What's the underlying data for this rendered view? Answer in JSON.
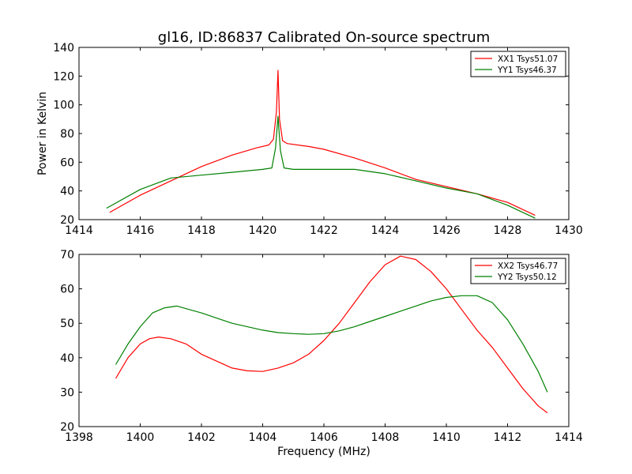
{
  "chart_data": [
    {
      "type": "line",
      "title": "gl16, ID:86837 Calibrated On-source spectrum",
      "xlabel": "",
      "ylabel": "Power in Kelvin",
      "xlim": [
        1414,
        1430
      ],
      "ylim": [
        20,
        140
      ],
      "xticks": [
        1414,
        1416,
        1418,
        1420,
        1422,
        1424,
        1426,
        1428,
        1430
      ],
      "yticks": [
        20,
        40,
        60,
        80,
        100,
        120,
        140
      ],
      "legend": "top-right",
      "grid": false,
      "series": [
        {
          "name": "XX1 Tsys51.07",
          "color": "#ff0000",
          "x": [
            1415.0,
            1416.0,
            1417.0,
            1418.0,
            1419.0,
            1419.8,
            1420.2,
            1420.35,
            1420.45,
            1420.5,
            1420.55,
            1420.65,
            1420.8,
            1421.5,
            1422.0,
            1423.0,
            1424.0,
            1425.0,
            1426.0,
            1427.0,
            1428.0,
            1428.9
          ],
          "y": [
            25,
            37,
            47,
            57,
            65,
            70,
            72,
            76,
            95,
            124,
            90,
            75,
            73,
            71,
            69,
            63,
            56,
            48,
            43,
            38,
            32,
            23
          ]
        },
        {
          "name": "YY1 Tsys46.37",
          "color": "#008000",
          "x": [
            1414.9,
            1416.0,
            1416.5,
            1417.0,
            1418.0,
            1419.0,
            1420.0,
            1420.3,
            1420.42,
            1420.5,
            1420.58,
            1420.7,
            1421.0,
            1422.0,
            1423.0,
            1424.0,
            1425.0,
            1426.0,
            1427.0,
            1428.0,
            1428.9
          ],
          "y": [
            28,
            41,
            45,
            49,
            51,
            53,
            55,
            56,
            70,
            92,
            68,
            56,
            55,
            55,
            55,
            52,
            47,
            42,
            38,
            30,
            21
          ]
        }
      ]
    },
    {
      "type": "line",
      "title": "",
      "xlabel": "Frequency (MHz)",
      "ylabel": "",
      "xlim": [
        1398,
        1414
      ],
      "ylim": [
        20,
        70
      ],
      "xticks": [
        1398,
        1400,
        1402,
        1404,
        1406,
        1408,
        1410,
        1412,
        1414
      ],
      "yticks": [
        20,
        30,
        40,
        50,
        60,
        70
      ],
      "legend": "top-right",
      "grid": false,
      "series": [
        {
          "name": "XX2 Tsys46.77",
          "color": "#ff0000",
          "x": [
            1399.2,
            1399.6,
            1400.0,
            1400.3,
            1400.6,
            1401.0,
            1401.5,
            1402.0,
            1402.5,
            1403.0,
            1403.5,
            1404.0,
            1404.5,
            1405.0,
            1405.5,
            1406.0,
            1406.5,
            1407.0,
            1407.5,
            1408.0,
            1408.5,
            1409.0,
            1409.5,
            1410.0,
            1410.5,
            1411.0,
            1411.5,
            1412.0,
            1412.5,
            1413.0,
            1413.3
          ],
          "y": [
            34,
            40,
            44,
            45.5,
            46,
            45.5,
            44,
            41,
            39,
            37,
            36.2,
            36,
            37,
            38.5,
            41,
            45,
            50,
            56,
            62,
            67,
            69.5,
            68.5,
            65,
            60,
            54,
            48,
            43,
            37,
            31,
            26,
            24
          ]
        },
        {
          "name": "YY2 Tsys50.12",
          "color": "#008000",
          "x": [
            1399.2,
            1399.6,
            1400.0,
            1400.4,
            1400.8,
            1401.2,
            1401.6,
            1402.0,
            1402.5,
            1403.0,
            1403.5,
            1404.0,
            1404.5,
            1405.0,
            1405.5,
            1406.0,
            1406.5,
            1407.0,
            1407.5,
            1408.0,
            1408.5,
            1409.0,
            1409.5,
            1410.0,
            1410.5,
            1411.0,
            1411.5,
            1412.0,
            1412.5,
            1413.0,
            1413.3
          ],
          "y": [
            38,
            44,
            49,
            53,
            54.5,
            55,
            54,
            53,
            51.5,
            50,
            49,
            48,
            47.3,
            47,
            46.8,
            47,
            47.8,
            49,
            50.5,
            52,
            53.5,
            55,
            56.5,
            57.5,
            58,
            58,
            56,
            51,
            44,
            36,
            30
          ]
        }
      ]
    }
  ]
}
